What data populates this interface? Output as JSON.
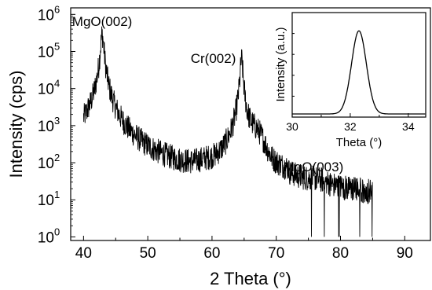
{
  "chart_data": [
    {
      "type": "line",
      "xlabel": "2 Theta (°)",
      "ylabel": "Intensity (cps)",
      "xlim": [
        38,
        94
      ],
      "ylim": [
        0.8,
        1500000
      ],
      "yscale": "log",
      "xticks": [
        "40",
        "50",
        "60",
        "70",
        "80",
        "90"
      ],
      "xtick_values": [
        40,
        50,
        60,
        70,
        80,
        90
      ],
      "yticks": [
        {
          "base": "10",
          "exp": "0",
          "value": 1
        },
        {
          "base": "10",
          "exp": "1",
          "value": 10
        },
        {
          "base": "10",
          "exp": "2",
          "value": 100
        },
        {
          "base": "10",
          "exp": "3",
          "value": 1000
        },
        {
          "base": "10",
          "exp": "4",
          "value": 10000
        },
        {
          "base": "10",
          "exp": "5",
          "value": 100000
        },
        {
          "base": "10",
          "exp": "6",
          "value": 1000000
        }
      ],
      "annotations": [
        {
          "text": "MgO(002)",
          "x": 42.9,
          "y": 300000
        },
        {
          "text": "Cr(002)",
          "x": 64.6,
          "y": 60000
        },
        {
          "text": "MgO(003)",
          "x": 66.7,
          "y": 500
        }
      ],
      "peaks": [
        {
          "center": 42.9,
          "height": 290000
        },
        {
          "center": 64.6,
          "height": 60000
        },
        {
          "center": 66.7,
          "height": 500
        },
        {
          "center": 58.8,
          "height": 22
        },
        {
          "center": 76.5,
          "height": 9
        }
      ],
      "x_range": [
        40,
        85
      ]
    },
    {
      "type": "line",
      "inset": true,
      "xlabel": "Theta (°)",
      "ylabel": "Intensity (a.u.)",
      "xlim": [
        30,
        34.6
      ],
      "xticks": [
        "30",
        "32",
        "34"
      ],
      "xtick_values": [
        30,
        32,
        34
      ],
      "peak_center": 32.3,
      "peak_fwhm": 0.6,
      "baseline": 0.08,
      "height": 1.0
    }
  ]
}
